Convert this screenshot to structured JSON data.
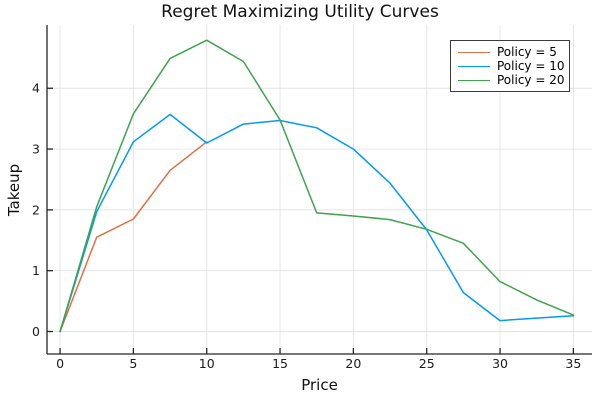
{
  "page": {
    "background": "#ffffff"
  },
  "chart_data": {
    "type": "line",
    "title": "Regret Maximizing Utility Curves",
    "xlabel": "Price",
    "ylabel": "Takeup",
    "xlim": [
      -0.89,
      36.27
    ],
    "ylim": [
      -0.37,
      5.04
    ],
    "xticks": [
      0,
      5,
      10,
      15,
      20,
      25,
      30,
      35
    ],
    "yticks": [
      0,
      1,
      2,
      3,
      4
    ],
    "grid": true,
    "legend_position": "top-right",
    "axis_color": "#262626",
    "grid_color": "#e4e4e4",
    "series": [
      {
        "name": "Policy = 5",
        "color": "#e26f46",
        "x": [
          0,
          2.5,
          5,
          7.5,
          10
        ],
        "values": [
          0.0,
          1.55,
          1.85,
          2.65,
          3.12
        ]
      },
      {
        "name": "Policy = 10",
        "color": "#009af9",
        "x": [
          0,
          2.5,
          5,
          7.5,
          10,
          12.5,
          15,
          17.5,
          20,
          22.5,
          25,
          27.5,
          30,
          32.5,
          35
        ],
        "values": [
          0.0,
          1.97,
          3.12,
          3.57,
          3.1,
          3.41,
          3.47,
          3.35,
          3.0,
          2.44,
          1.67,
          0.64,
          0.18,
          0.22,
          0.26
        ]
      },
      {
        "name": "Policy = 20",
        "color": "#3da44d",
        "x": [
          0,
          2.5,
          5,
          7.5,
          10,
          12.5,
          15,
          17.5,
          20,
          22.5,
          25,
          27.5,
          30,
          32.5,
          35
        ],
        "values": [
          0.0,
          2.05,
          3.58,
          4.49,
          4.79,
          4.44,
          3.48,
          1.95,
          1.9,
          1.84,
          1.68,
          1.45,
          0.82,
          0.52,
          0.27
        ]
      }
    ]
  }
}
